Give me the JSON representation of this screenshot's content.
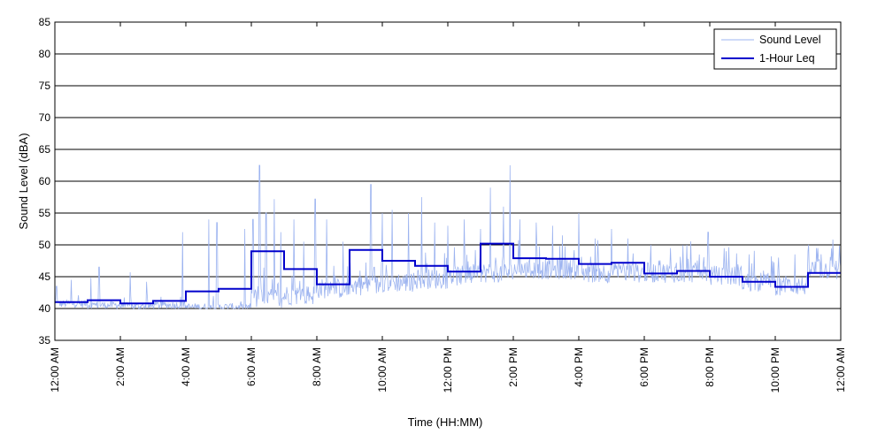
{
  "chart_data": {
    "type": "line",
    "xlabel": "Time (HH:MM)",
    "ylabel": "Sound Level (dBA)",
    "xlim": [
      0,
      24
    ],
    "ylim": [
      35,
      85
    ],
    "yticks": [
      35,
      40,
      45,
      50,
      55,
      60,
      65,
      70,
      75,
      80,
      85
    ],
    "xticks": [
      {
        "hour": 0,
        "label": "12:00 AM"
      },
      {
        "hour": 2,
        "label": "2:00 AM"
      },
      {
        "hour": 4,
        "label": "4:00 AM"
      },
      {
        "hour": 6,
        "label": "6:00 AM"
      },
      {
        "hour": 8,
        "label": "8:00 AM"
      },
      {
        "hour": 10,
        "label": "10:00 AM"
      },
      {
        "hour": 12,
        "label": "12:00 PM"
      },
      {
        "hour": 14,
        "label": "2:00 PM"
      },
      {
        "hour": 16,
        "label": "4:00 PM"
      },
      {
        "hour": 18,
        "label": "6:00 PM"
      },
      {
        "hour": 20,
        "label": "8:00 PM"
      },
      {
        "hour": 22,
        "label": "10:00 PM"
      },
      {
        "hour": 24,
        "label": "12:00 AM"
      }
    ],
    "grid": "horizontal",
    "legend_position": "top-right",
    "colors": {
      "sound_level": "#9db4f0",
      "leq": "#0000cc"
    },
    "series": [
      {
        "name": "Sound Level",
        "hourly_baseline": [
          40.5,
          40.3,
          40.1,
          40.3,
          40.0,
          40.0,
          41.0,
          41.5,
          42.5,
          43.0,
          43.5,
          44.0,
          44.5,
          45.0,
          45.5,
          45.5,
          45.0,
          45.0,
          45.0,
          45.0,
          44.5,
          43.5,
          43.0,
          45.5
        ],
        "peaks": [
          {
            "x": 0.05,
            "y": 43.5
          },
          {
            "x": 0.5,
            "y": 44.5
          },
          {
            "x": 1.1,
            "y": 44.8
          },
          {
            "x": 1.35,
            "y": 46.5
          },
          {
            "x": 2.3,
            "y": 45.7
          },
          {
            "x": 2.8,
            "y": 44.2
          },
          {
            "x": 3.9,
            "y": 52.0
          },
          {
            "x": 4.7,
            "y": 54.0
          },
          {
            "x": 4.95,
            "y": 53.5
          },
          {
            "x": 5.8,
            "y": 52.5
          },
          {
            "x": 6.05,
            "y": 54.0
          },
          {
            "x": 6.25,
            "y": 62.5
          },
          {
            "x": 6.45,
            "y": 55.0
          },
          {
            "x": 6.7,
            "y": 57.2
          },
          {
            "x": 6.9,
            "y": 52.0
          },
          {
            "x": 7.3,
            "y": 54.0
          },
          {
            "x": 7.6,
            "y": 50.5
          },
          {
            "x": 7.95,
            "y": 57.2
          },
          {
            "x": 8.3,
            "y": 54.0
          },
          {
            "x": 8.8,
            "y": 50.5
          },
          {
            "x": 9.65,
            "y": 59.5
          },
          {
            "x": 10.0,
            "y": 55.0
          },
          {
            "x": 10.3,
            "y": 55.5
          },
          {
            "x": 10.8,
            "y": 55.0
          },
          {
            "x": 11.2,
            "y": 57.5
          },
          {
            "x": 11.6,
            "y": 53.5
          },
          {
            "x": 12.0,
            "y": 53.0
          },
          {
            "x": 12.5,
            "y": 54.0
          },
          {
            "x": 13.0,
            "y": 52.5
          },
          {
            "x": 13.3,
            "y": 59.0
          },
          {
            "x": 13.7,
            "y": 56.0
          },
          {
            "x": 13.9,
            "y": 62.5
          },
          {
            "x": 14.2,
            "y": 54.0
          },
          {
            "x": 14.7,
            "y": 53.5
          },
          {
            "x": 15.2,
            "y": 53.0
          },
          {
            "x": 15.5,
            "y": 51.5
          },
          {
            "x": 16.0,
            "y": 55.0
          },
          {
            "x": 16.5,
            "y": 51.0
          },
          {
            "x": 17.0,
            "y": 52.5
          },
          {
            "x": 17.5,
            "y": 51.0
          },
          {
            "x": 18.2,
            "y": 50.0
          },
          {
            "x": 18.8,
            "y": 49.5
          },
          {
            "x": 19.3,
            "y": 50.0
          },
          {
            "x": 19.95,
            "y": 52.0
          },
          {
            "x": 20.5,
            "y": 49.0
          },
          {
            "x": 21.2,
            "y": 48.5
          },
          {
            "x": 22.1,
            "y": 48.0
          },
          {
            "x": 22.6,
            "y": 48.5
          },
          {
            "x": 23.0,
            "y": 49.0
          },
          {
            "x": 23.3,
            "y": 49.5
          }
        ]
      },
      {
        "name": "1-Hour Leq",
        "step": true,
        "values": [
          41.0,
          41.3,
          40.8,
          41.2,
          42.7,
          43.1,
          49.0,
          46.2,
          43.8,
          49.2,
          47.5,
          46.7,
          45.8,
          50.2,
          47.9,
          47.8,
          47.0,
          47.2,
          45.5,
          45.9,
          45.0,
          44.2,
          43.4,
          45.6
        ]
      }
    ]
  }
}
